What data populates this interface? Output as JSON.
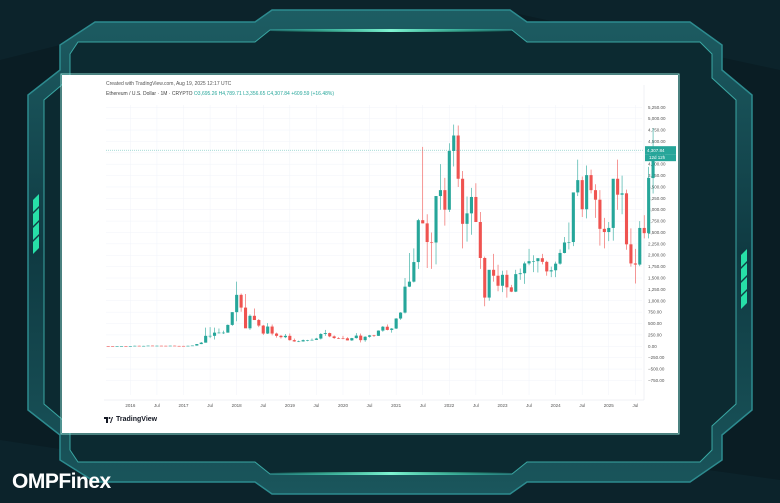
{
  "brand": {
    "name": "OMPFinex",
    "colors": {
      "primary": "#ffffff",
      "accent": "#27e0a8"
    }
  },
  "card": {
    "caption": "Created with TradingView.com, Aug 19, 2025 12:17 UTC",
    "series_name": "Ethereum / U.S. Dollar · 1M · CRYPTO",
    "series_values": "O3,695.26  H4,789.71  L3,356.65  C4,307.84  +609.59 (+16.48%)",
    "tv_logo": "TradingView"
  },
  "chart_data": {
    "type": "candlestick",
    "title": "Ethereum / U.S. Dollar · 1M · CRYPTO",
    "last_price_label": "4,307.84",
    "last_price_countdown": "12d 12h",
    "last_price": 4307.84,
    "ylim": [
      -850,
      5300
    ],
    "y_ticks": [
      5250,
      5000,
      4750,
      4500,
      4250,
      4000,
      3750,
      3500,
      3250,
      3000,
      2750,
      2500,
      2250,
      2000,
      1750,
      1500,
      1250,
      1000,
      750,
      500,
      250,
      0,
      -250,
      -500,
      -750
    ],
    "y_tick_labels": [
      "5,250.00",
      "5,000.00",
      "4,750.00",
      "4,500.00",
      "4,250.00",
      "4,000.00",
      "3,750.00",
      "3,500.00",
      "3,250.00",
      "3,000.00",
      "2,750.00",
      "2,500.00",
      "2,250.00",
      "2,000.00",
      "1,750.00",
      "1,500.00",
      "1,250.00",
      "1,000.00",
      "750.00",
      "500.00",
      "250.00",
      "0.00",
      "−250.00",
      "−500.00",
      "−750.00"
    ],
    "x_start": "2015-08",
    "x_end": "2025-08",
    "x_ticks": [
      {
        "date": "2016-01",
        "label": "2016"
      },
      {
        "date": "2016-07",
        "label": "Jul"
      },
      {
        "date": "2017-01",
        "label": "2017"
      },
      {
        "date": "2017-07",
        "label": "Jul"
      },
      {
        "date": "2018-01",
        "label": "2018"
      },
      {
        "date": "2018-07",
        "label": "Jul"
      },
      {
        "date": "2019-01",
        "label": "2019"
      },
      {
        "date": "2019-07",
        "label": "Jul"
      },
      {
        "date": "2020-01",
        "label": "2020"
      },
      {
        "date": "2020-07",
        "label": "Jul"
      },
      {
        "date": "2021-01",
        "label": "2021"
      },
      {
        "date": "2021-07",
        "label": "Jul"
      },
      {
        "date": "2022-01",
        "label": "2022"
      },
      {
        "date": "2022-07",
        "label": "Jul"
      },
      {
        "date": "2023-01",
        "label": "2023"
      },
      {
        "date": "2023-07",
        "label": "Jul"
      },
      {
        "date": "2024-01",
        "label": "2024"
      },
      {
        "date": "2024-07",
        "label": "Jul"
      },
      {
        "date": "2025-01",
        "label": "2025"
      },
      {
        "date": "2025-07",
        "label": "Jul"
      }
    ],
    "colors": {
      "up": "#26a69a",
      "down": "#ef5350",
      "price_line": "#26a69a",
      "grid": "#f0f3fa"
    },
    "grid": true,
    "candles_ohlc": [
      [
        2.8,
        2.8,
        0.5,
        1.2
      ],
      [
        1.2,
        1.5,
        0.5,
        0.8
      ],
      [
        0.8,
        1.4,
        0.7,
        0.9
      ],
      [
        0.9,
        1.3,
        0.8,
        1.0
      ],
      [
        1.0,
        1.1,
        0.9,
        0.9
      ],
      [
        0.9,
        2.8,
        0.9,
        2.2
      ],
      [
        2.2,
        12.0,
        2.1,
        11.0
      ],
      [
        11.0,
        12.5,
        7.0,
        7.5
      ],
      [
        7.5,
        10.5,
        6.9,
        8.8
      ],
      [
        8.8,
        15.0,
        8.6,
        14.0
      ],
      [
        14.0,
        14.4,
        10.2,
        11.5
      ],
      [
        11.5,
        14.0,
        10.0,
        12.3
      ],
      [
        12.3,
        14.2,
        11.0,
        11.2
      ],
      [
        11.2,
        12.5,
        10.2,
        11.1
      ],
      [
        11.1,
        12.9,
        10.0,
        12.9
      ],
      [
        12.9,
        13.8,
        8.1,
        8.2
      ],
      [
        8.2,
        9.8,
        7.5,
        8.1
      ],
      [
        8.1,
        8.2,
        7.5,
        8.0
      ],
      [
        8.0,
        11.0,
        7.8,
        10.7
      ],
      [
        10.7,
        17.0,
        10.5,
        16.2
      ],
      [
        16.2,
        50.0,
        16.0,
        49.0
      ],
      [
        49.0,
        95.0,
        48.0,
        80.0
      ],
      [
        80.0,
        410.0,
        80.0,
        230.0
      ],
      [
        230.0,
        420.0,
        180.0,
        230.0
      ],
      [
        230.0,
        410.0,
        150.0,
        300.0
      ],
      [
        300.0,
        390.0,
        280.0,
        300.0
      ],
      [
        300.0,
        345.0,
        270.0,
        300.0
      ],
      [
        300.0,
        480.0,
        300.0,
        470.0
      ],
      [
        470.0,
        750.0,
        450.0,
        750.0
      ],
      [
        750.0,
        1420.0,
        550.0,
        1130.0
      ],
      [
        1130.0,
        1160.0,
        760.0,
        850.0
      ],
      [
        850.0,
        1150.0,
        800.0,
        395.0
      ],
      [
        395.0,
        700.0,
        360.0,
        670.0
      ],
      [
        670.0,
        830.0,
        600.0,
        577.0
      ],
      [
        577.0,
        600.0,
        420.0,
        455.0
      ],
      [
        455.0,
        470.0,
        250.0,
        280.0
      ],
      [
        280.0,
        510.0,
        270.0,
        434.0
      ],
      [
        434.0,
        480.0,
        240.0,
        280.0
      ],
      [
        280.0,
        300.0,
        190.0,
        230.0
      ],
      [
        230.0,
        250.0,
        170.0,
        200.0
      ],
      [
        200.0,
        270.0,
        180.0,
        230.0
      ],
      [
        230.0,
        280.0,
        125.0,
        135.0
      ],
      [
        135.0,
        170.0,
        100.0,
        107.0
      ],
      [
        107.0,
        125.0,
        100.0,
        107.0
      ],
      [
        107.0,
        150.0,
        102.0,
        135.0
      ],
      [
        135.0,
        142.0,
        110.0,
        138.0
      ],
      [
        138.0,
        172.0,
        134.0,
        141.0
      ],
      [
        141.0,
        185.0,
        140.0,
        170.0
      ],
      [
        170.0,
        290.0,
        150.0,
        270.0
      ],
      [
        270.0,
        360.0,
        230.0,
        290.0
      ],
      [
        290.0,
        300.0,
        200.0,
        218.0
      ],
      [
        218.0,
        240.0,
        160.0,
        182.0
      ],
      [
        182.0,
        200.0,
        160.0,
        180.0
      ],
      [
        180.0,
        230.0,
        155.0,
        175.0
      ],
      [
        175.0,
        200.0,
        130.0,
        130.0
      ],
      [
        130.0,
        185.0,
        120.0,
        180.0
      ],
      [
        180.0,
        290.0,
        170.0,
        235.0
      ],
      [
        235.0,
        280.0,
        85.0,
        135.0
      ],
      [
        135.0,
        220.0,
        100.0,
        210.0
      ],
      [
        210.0,
        250.0,
        190.0,
        240.0
      ],
      [
        240.0,
        250.0,
        205.0,
        230.0
      ],
      [
        230.0,
        350.0,
        225.0,
        345.0
      ],
      [
        345.0,
        445.0,
        320.0,
        430.0
      ],
      [
        430.0,
        480.0,
        350.0,
        360.0
      ],
      [
        360.0,
        400.0,
        300.0,
        390.0
      ],
      [
        390.0,
        620.0,
        380.0,
        610.0
      ],
      [
        610.0,
        750.0,
        580.0,
        740.0
      ],
      [
        740.0,
        1500.0,
        720.0,
        1310.0
      ],
      [
        1310.0,
        2050.0,
        1300.0,
        1420.0
      ],
      [
        1420.0,
        2150.0,
        1400.0,
        1850.0
      ],
      [
        1850.0,
        2800.0,
        1700.0,
        2770.0
      ],
      [
        2770.0,
        4380.0,
        2700.0,
        2700.0
      ],
      [
        2700.0,
        2900.0,
        1720.0,
        2290.0
      ],
      [
        2290.0,
        2500.0,
        1700.0,
        2280.0
      ],
      [
        2280.0,
        3300.0,
        1800.0,
        3300.0
      ],
      [
        3300.0,
        4000.0,
        3000.0,
        3430.0
      ],
      [
        3430.0,
        3700.0,
        2650.0,
        3000.0
      ],
      [
        3000.0,
        4460.0,
        2950.0,
        4290.0
      ],
      [
        4290.0,
        4870.0,
        3950.0,
        4630.0
      ],
      [
        4630.0,
        4850.0,
        3500.0,
        3680.0
      ],
      [
        3680.0,
        3850.0,
        2150.0,
        2690.0
      ],
      [
        2690.0,
        3290.0,
        2300.0,
        2920.0
      ],
      [
        2920.0,
        3480.0,
        2450.0,
        3280.0
      ],
      [
        3280.0,
        3580.0,
        2750.0,
        2730.0
      ],
      [
        2730.0,
        2950.0,
        1700.0,
        1940.0
      ],
      [
        1940.0,
        1970.0,
        880.0,
        1070.0
      ],
      [
        1070.0,
        1280.0,
        1000.0,
        1680.0
      ],
      [
        1680.0,
        2030.0,
        1420.0,
        1550.0
      ],
      [
        1550.0,
        1790.0,
        1210.0,
        1330.0
      ],
      [
        1330.0,
        1660.0,
        1190.0,
        1570.0
      ],
      [
        1570.0,
        1670.0,
        1070.0,
        1295.0
      ],
      [
        1295.0,
        1350.0,
        1190.0,
        1200.0
      ],
      [
        1200.0,
        1680.0,
        1190.0,
        1585.0
      ],
      [
        1585.0,
        1710.0,
        1460.0,
        1605.0
      ],
      [
        1605.0,
        1860.0,
        1370.0,
        1820.0
      ],
      [
        1820.0,
        2140.0,
        1780.0,
        1870.0
      ],
      [
        1870.0,
        2000.0,
        1630.0,
        1870.0
      ],
      [
        1870.0,
        1930.0,
        1620.0,
        1935.0
      ],
      [
        1935.0,
        2030.0,
        1800.0,
        1855.0
      ],
      [
        1855.0,
        1880.0,
        1550.0,
        1645.0
      ],
      [
        1645.0,
        1750.0,
        1520.0,
        1670.0
      ],
      [
        1670.0,
        1860.0,
        1520.0,
        1815.0
      ],
      [
        1815.0,
        2130.0,
        1790.0,
        2050.0
      ],
      [
        2050.0,
        2400.0,
        2040.0,
        2280.0
      ],
      [
        2280.0,
        2720.0,
        2130.0,
        2290.0
      ],
      [
        2290.0,
        3030.0,
        2200.0,
        3380.0
      ],
      [
        3380.0,
        4100.0,
        3300.0,
        3650.0
      ],
      [
        3650.0,
        3730.0,
        2840.0,
        3010.0
      ],
      [
        3010.0,
        3970.0,
        2810.0,
        3760.0
      ],
      [
        3760.0,
        3880.0,
        3360.0,
        3430.0
      ],
      [
        3430.0,
        3560.0,
        2820.0,
        3220.0
      ],
      [
        3220.0,
        3430.0,
        2210.0,
        2580.0
      ],
      [
        2580.0,
        2820.0,
        2150.0,
        2510.0
      ],
      [
        2510.0,
        2730.0,
        2310.0,
        2600.0
      ],
      [
        2600.0,
        2660.0,
        2320.0,
        3680.0
      ],
      [
        3680.0,
        4100.0,
        3000.0,
        3330.0
      ],
      [
        3330.0,
        3750.0,
        2900.0,
        3360.0
      ],
      [
        3360.0,
        3440.0,
        2120.0,
        2240.0
      ],
      [
        2240.0,
        2590.0,
        1750.0,
        1820.0
      ],
      [
        1820.0,
        2140.0,
        1380.0,
        1795.0
      ],
      [
        1795.0,
        2750.0,
        1760.0,
        2600.0
      ],
      [
        2600.0,
        2880.0,
        2370.0,
        2485.0
      ],
      [
        2485.0,
        3940.0,
        2370.0,
        3700.0
      ],
      [
        3695.26,
        4789.71,
        3356.65,
        4307.84
      ]
    ]
  }
}
